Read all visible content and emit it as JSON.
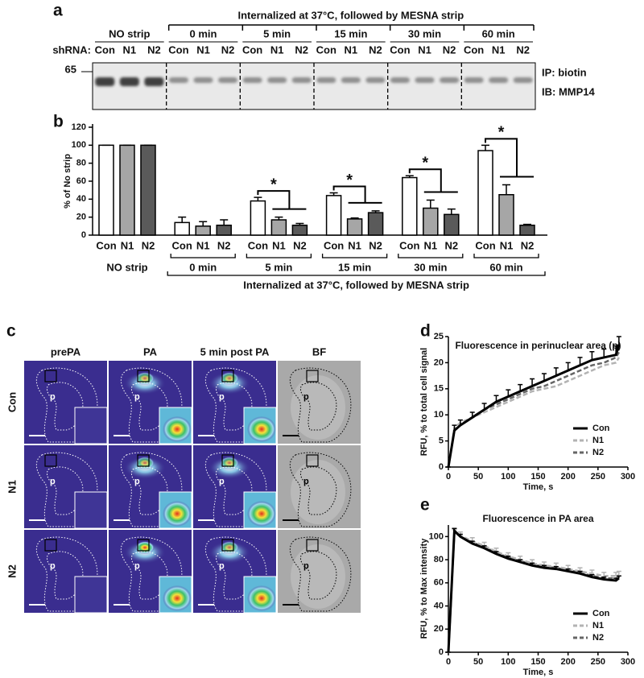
{
  "labels": [
    "a",
    "b",
    "c",
    "d",
    "e"
  ],
  "blot": {
    "header": "Internalized at 37°C, followed by MESNA strip",
    "shrna_label": "shRNA:",
    "marker": "65",
    "right_labels": [
      "IP: biotin",
      "IB: MMP14"
    ],
    "groups": [
      {
        "title": "NO strip",
        "lanes": [
          "Con",
          "N1",
          "N2"
        ]
      },
      {
        "title": "0 min",
        "lanes": [
          "Con",
          "N1",
          "N2"
        ]
      },
      {
        "title": "5 min",
        "lanes": [
          "Con",
          "N1",
          "N2"
        ]
      },
      {
        "title": "15 min",
        "lanes": [
          "Con",
          "N1",
          "N2"
        ]
      },
      {
        "title": "30 min",
        "lanes": [
          "Con",
          "N1",
          "N2"
        ]
      },
      {
        "title": "60 min",
        "lanes": [
          "Con",
          "N1",
          "N2"
        ]
      }
    ]
  },
  "micrographs": {
    "columns": [
      "prePA",
      "PA",
      "5 min post PA",
      "BF"
    ],
    "rows": [
      "Con",
      "N1",
      "N2"
    ],
    "region_label": "p"
  },
  "chart_data": [
    {
      "type": "bar",
      "ylabel": "% of No strip",
      "categories": [
        "NO strip",
        "0 min",
        "5 min",
        "15 min",
        "30 min",
        "60 min"
      ],
      "series": [
        {
          "name": "Con",
          "color": "#ffffff",
          "values": [
            100,
            14,
            38,
            44,
            64,
            94
          ],
          "errors": [
            0,
            6,
            4,
            3,
            2,
            6
          ]
        },
        {
          "name": "N1",
          "color": "#a6a6a6",
          "values": [
            100,
            10,
            17,
            18,
            30,
            45
          ],
          "errors": [
            0,
            5,
            3,
            1,
            9,
            11
          ]
        },
        {
          "name": "N2",
          "color": "#5a5a5a",
          "values": [
            100,
            11,
            11,
            25,
            23,
            11
          ],
          "errors": [
            0,
            6,
            2,
            2,
            6,
            1
          ]
        }
      ],
      "ylim": [
        0,
        120
      ],
      "yticks": [
        0,
        20,
        40,
        60,
        80,
        100,
        120
      ],
      "bracket_label": "Internalized at 37°C, followed by MESNA strip",
      "significance": [
        null,
        null,
        "*",
        "*",
        "*",
        "*"
      ]
    },
    {
      "type": "line",
      "title": "Fluorescence in perinuclear area (p)",
      "xlabel": "Time, s",
      "ylabel": "RFU, % to total cell signal",
      "x": [
        0,
        10,
        20,
        40,
        60,
        80,
        100,
        120,
        140,
        160,
        180,
        200,
        220,
        240,
        260,
        280,
        285
      ],
      "series": [
        {
          "name": "Con",
          "color": "#000000",
          "style": "solid",
          "values": [
            0,
            7,
            8,
            9.5,
            11,
            12.5,
            13.5,
            14.5,
            15.5,
            16.5,
            17.5,
            18.5,
            19.5,
            20.5,
            21,
            21.5,
            23.5
          ],
          "errors": [
            0,
            1,
            1,
            1,
            1.2,
            1.2,
            1.3,
            1.3,
            1.4,
            1.4,
            1.5,
            1.5,
            1.5,
            1.6,
            1.6,
            1.7,
            1.5
          ]
        },
        {
          "name": "N1",
          "color": "#b3b3b3",
          "style": "dashed",
          "values": [
            0,
            7.5,
            8.5,
            9.5,
            10.5,
            11.5,
            12.5,
            13.5,
            14.5,
            15,
            15.5,
            16.5,
            17.5,
            18.5,
            19.5,
            20,
            21
          ]
        },
        {
          "name": "N2",
          "color": "#666666",
          "style": "dashed",
          "values": [
            0,
            7,
            8,
            9.5,
            11,
            12,
            13,
            14,
            15,
            15.5,
            16.5,
            17.5,
            18.5,
            19.5,
            20,
            21,
            22
          ]
        }
      ],
      "xlim": [
        0,
        300
      ],
      "xticks": [
        0,
        50,
        100,
        150,
        200,
        250,
        300
      ],
      "ylim": [
        0,
        25
      ],
      "yticks": [
        0,
        5,
        10,
        15,
        20,
        25
      ],
      "legend": "lower right"
    },
    {
      "type": "line",
      "title": "Fluorescence in PA area",
      "xlabel": "Time, s",
      "ylabel": "RFU, % to Max intensity",
      "x": [
        0,
        10,
        20,
        40,
        60,
        80,
        100,
        120,
        140,
        160,
        180,
        200,
        220,
        240,
        260,
        280,
        285
      ],
      "series": [
        {
          "name": "Con",
          "color": "#000000",
          "style": "solid",
          "values": [
            0,
            105,
            100,
            94,
            90,
            85,
            81,
            78,
            75,
            73,
            72,
            70,
            68,
            65,
            63,
            62,
            64
          ],
          "errors": [
            0,
            2,
            2,
            2,
            2,
            2,
            2,
            2,
            2,
            2,
            2,
            2,
            2,
            2,
            2,
            2,
            2
          ]
        },
        {
          "name": "N1",
          "color": "#b3b3b3",
          "style": "dashed",
          "values": [
            0,
            103,
            101,
            96,
            92,
            87,
            83,
            80,
            77,
            75,
            74,
            72,
            70,
            68,
            66,
            66,
            67
          ],
          "errors": [
            0,
            3,
            3,
            3,
            3,
            3,
            3,
            3,
            3,
            3,
            3,
            3,
            3,
            3,
            3,
            3,
            3
          ]
        },
        {
          "name": "N2",
          "color": "#666666",
          "style": "dashed",
          "values": [
            0,
            104,
            100,
            95,
            91,
            86,
            82,
            79,
            76,
            74,
            73,
            71,
            69,
            66,
            64,
            64,
            65
          ]
        }
      ],
      "xlim": [
        0,
        300
      ],
      "xticks": [
        0,
        50,
        100,
        150,
        200,
        250,
        300
      ],
      "ylim": [
        0,
        110
      ],
      "yticks": [
        0,
        20,
        40,
        60,
        80,
        100
      ],
      "legend": "lower right"
    }
  ]
}
